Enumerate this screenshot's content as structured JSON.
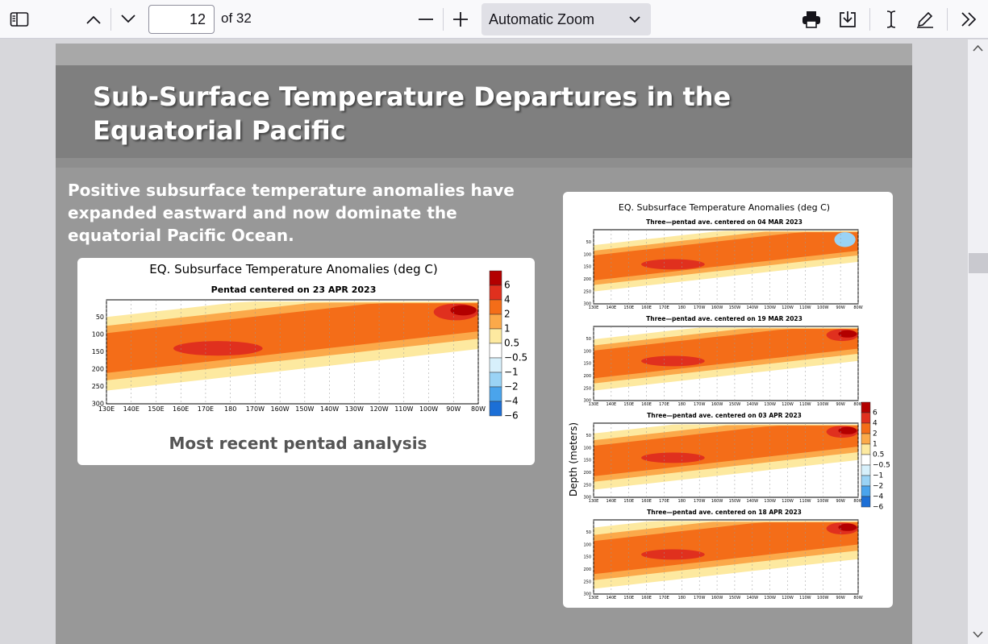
{
  "toolbar": {
    "current_page": "12",
    "page_count_label": "of 32",
    "zoom_label": "Automatic Zoom",
    "icons": [
      "sidebar-toggle-icon",
      "previous-page-icon",
      "next-page-icon",
      "zoom-out-icon",
      "zoom-in-icon",
      "print-icon",
      "save-icon",
      "text-cursor-icon",
      "draw-icon",
      "tools-menu-icon"
    ]
  },
  "slide": {
    "title": "Sub-Surface Temperature Departures in the Equatorial Pacific",
    "body": "Positive subsurface temperature anomalies have expanded eastward and now dominate the equatorial Pacific Ocean."
  },
  "left_figure": {
    "title": "EQ. Subsurface Temperature Anomalies (deg C)",
    "subtitle": "Pentad centered on 23 APR 2023",
    "caption": "Most recent pentad analysis",
    "x_ticks": [
      "130E",
      "140E",
      "150E",
      "160E",
      "170E",
      "180",
      "170W",
      "160W",
      "150W",
      "140W",
      "130W",
      "120W",
      "110W",
      "100W",
      "90W",
      "80W"
    ],
    "y_ticks": [
      "50",
      "100",
      "150",
      "200",
      "250",
      "300"
    ],
    "legend": [
      "6",
      "4",
      "2",
      "1",
      "0.5",
      "−0.5",
      "−1",
      "−2",
      "−4",
      "−6"
    ]
  },
  "right_figure": {
    "title": "EQ. Subsurface Temperature Anomalies (deg C)",
    "y_label": "Depth (meters)",
    "panels": [
      {
        "subtitle": "Three—pentad ave. centered on 04 MAR 2023"
      },
      {
        "subtitle": "Three—pentad ave. centered on 19 MAR 2023"
      },
      {
        "subtitle": "Three—pentad ave. centered on 03 APR 2023"
      },
      {
        "subtitle": "Three—pentad ave. centered on 18 APR 2023"
      }
    ],
    "x_ticks": [
      "130E",
      "140E",
      "150E",
      "160E",
      "170E",
      "180",
      "170W",
      "160W",
      "150W",
      "140W",
      "130W",
      "120W",
      "110W",
      "100W",
      "90W",
      "80W"
    ],
    "y_ticks": [
      "50",
      "100",
      "150",
      "200",
      "250",
      "300"
    ],
    "legend": [
      "6",
      "4",
      "2",
      "1",
      "0.5",
      "−0.5",
      "−1",
      "−2",
      "−4",
      "−6"
    ]
  },
  "colors": {
    "legend_scale": [
      "#b30000",
      "#e0301e",
      "#f46d18",
      "#fba94a",
      "#fde9a0",
      "#ffffff",
      "#d7f0fb",
      "#9ad3f5",
      "#4aa4ec",
      "#1c6fd6"
    ]
  }
}
